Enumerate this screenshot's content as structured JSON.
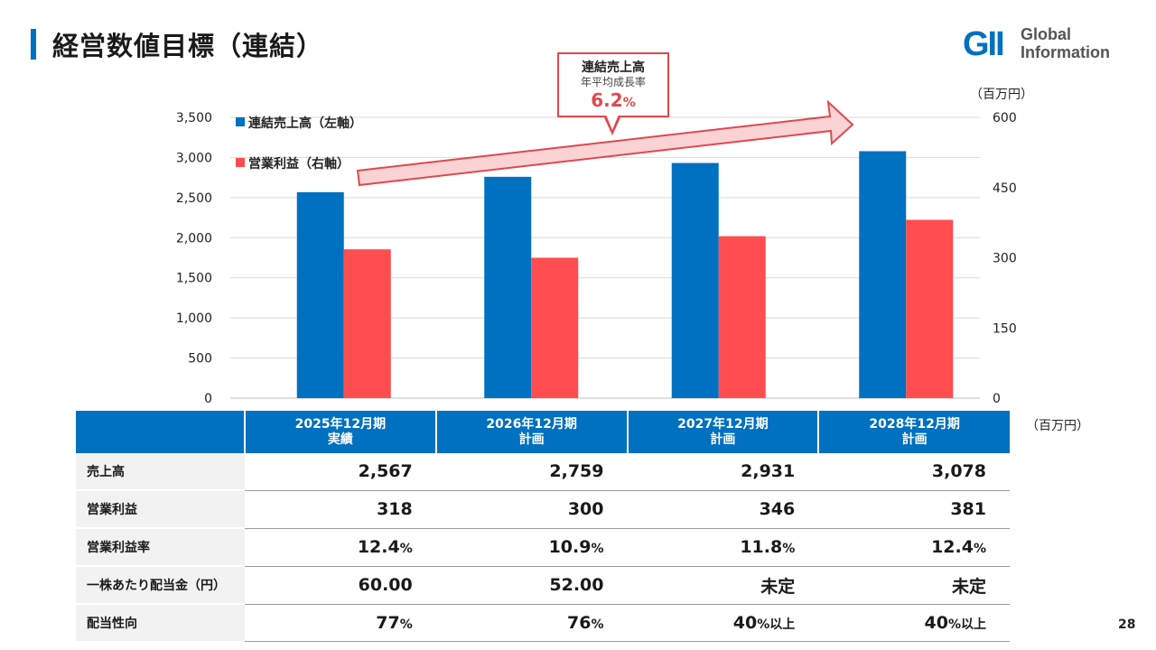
{
  "title": "経営数値目標（連結）",
  "logo": {
    "mark": "GII",
    "line1": "Global",
    "line2": "Information"
  },
  "units": {
    "chart_right": "（百万円）",
    "table": "（百万円）"
  },
  "callout": {
    "line1": "連結売上高",
    "line2": "年平均成長率",
    "value": "6.2",
    "suffix": "%"
  },
  "page_number": "28",
  "colors": {
    "sales": "#0070c0",
    "op": "#ff4d50",
    "header": "#0070c0",
    "accent": "#e0484d"
  },
  "chart_data": {
    "type": "bar",
    "categories": [
      "2025年12月期 実績",
      "2026年12月期 計画",
      "2027年12月期 計画",
      "2028年12月期 計画"
    ],
    "series": [
      {
        "name": "連結売上高（左軸）",
        "axis": "left",
        "values": [
          2567,
          2759,
          2931,
          3078
        ]
      },
      {
        "name": "営業利益（右軸）",
        "axis": "right",
        "values": [
          318,
          300,
          346,
          381
        ]
      }
    ],
    "y_left": {
      "min": 0,
      "max": 3500,
      "ticks": [
        "0",
        "500",
        "1,000",
        "1,500",
        "2,000",
        "2,500",
        "3,000",
        "3,500"
      ]
    },
    "y_right": {
      "min": 0,
      "max": 600,
      "ticks": [
        "0",
        "150",
        "300",
        "450",
        "600"
      ],
      "label": "（百万円）"
    },
    "legend": "top-left",
    "grid": true
  },
  "table": {
    "headers": [
      {
        "line1": "2025年12月期",
        "line2": "実績"
      },
      {
        "line1": "2026年12月期",
        "line2": "計画"
      },
      {
        "line1": "2027年12月期",
        "line2": "計画"
      },
      {
        "line1": "2028年12月期",
        "line2": "計画"
      }
    ],
    "rows": [
      {
        "label": "売上高",
        "cells": [
          {
            "v": "2,567",
            "s": ""
          },
          {
            "v": "2,759",
            "s": ""
          },
          {
            "v": "2,931",
            "s": ""
          },
          {
            "v": "3,078",
            "s": ""
          }
        ]
      },
      {
        "label": "営業利益",
        "cells": [
          {
            "v": "318",
            "s": ""
          },
          {
            "v": "300",
            "s": ""
          },
          {
            "v": "346",
            "s": ""
          },
          {
            "v": "381",
            "s": ""
          }
        ]
      },
      {
        "label": "営業利益率",
        "cells": [
          {
            "v": "12.4",
            "s": "%"
          },
          {
            "v": "10.9",
            "s": "%"
          },
          {
            "v": "11.8",
            "s": "%"
          },
          {
            "v": "12.4",
            "s": "%"
          }
        ]
      },
      {
        "label": "一株あたり配当金（円）",
        "cells": [
          {
            "v": "60.00",
            "s": ""
          },
          {
            "v": "52.00",
            "s": ""
          },
          {
            "v": "未定",
            "s": ""
          },
          {
            "v": "未定",
            "s": ""
          }
        ]
      },
      {
        "label": "配当性向",
        "cells": [
          {
            "v": "77",
            "s": "%"
          },
          {
            "v": "76",
            "s": "%"
          },
          {
            "v": "40",
            "s": "%以上"
          },
          {
            "v": "40",
            "s": "%以上"
          }
        ]
      }
    ]
  }
}
